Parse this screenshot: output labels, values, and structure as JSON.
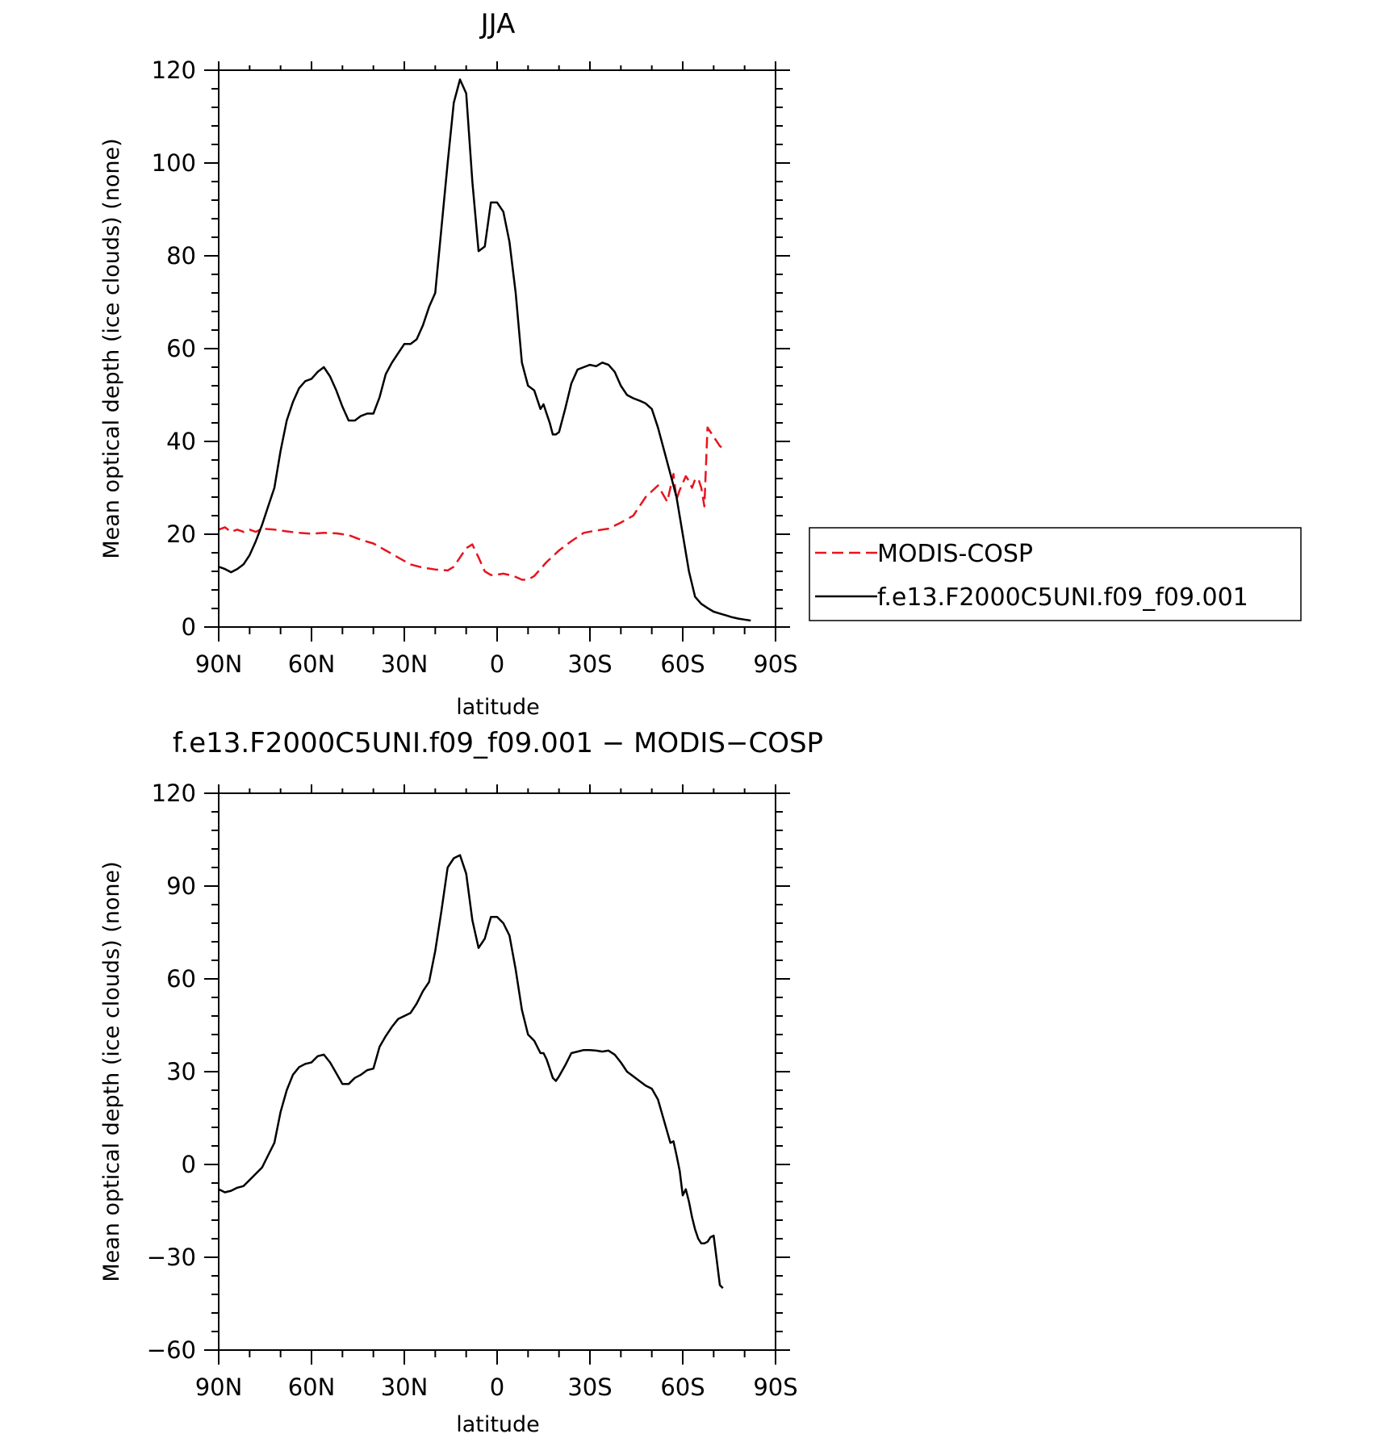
{
  "chart_data": [
    {
      "type": "line",
      "title": "JJA",
      "xlabel": "latitude",
      "ylabel": "Mean optical depth (ice clouds) (none)",
      "xlim": [
        90,
        -90
      ],
      "ylim": [
        0,
        120
      ],
      "x_ticks": [
        {
          "value": 90,
          "label": "90N"
        },
        {
          "value": 60,
          "label": "60N"
        },
        {
          "value": 30,
          "label": "30N"
        },
        {
          "value": 0,
          "label": "0"
        },
        {
          "value": -30,
          "label": "30S"
        },
        {
          "value": -60,
          "label": "60S"
        },
        {
          "value": -90,
          "label": "90S"
        }
      ],
      "y_ticks": [
        0,
        20,
        40,
        60,
        80,
        100,
        120
      ],
      "legend": "right",
      "series": [
        {
          "name": "MODIS-COSP",
          "color": "#e8141e",
          "dash": true,
          "x": [
            90,
            88,
            86,
            84,
            82,
            80,
            78,
            76,
            72,
            68,
            64,
            60,
            56,
            52,
            48,
            44,
            40,
            36,
            32,
            28,
            24,
            20,
            16,
            14,
            12,
            10,
            8,
            6,
            4,
            2,
            0,
            -2,
            -4,
            -6,
            -8,
            -10,
            -12,
            -14,
            -16,
            -20,
            -24,
            -28,
            -32,
            -36,
            -40,
            -44,
            -48,
            -52,
            -55,
            -56,
            -57,
            -58,
            -59,
            -60,
            -61,
            -62,
            -63,
            -64,
            -65,
            -66,
            -67,
            -68,
            -69,
            -70,
            -71,
            -72,
            -73
          ],
          "y": [
            21,
            21.5,
            20.5,
            21,
            20.5,
            21,
            20.5,
            21.2,
            21,
            20.6,
            20.3,
            20.1,
            20.3,
            20.2,
            19.8,
            18.8,
            18,
            16.5,
            15,
            13.5,
            12.8,
            12.4,
            12.2,
            13,
            15,
            17,
            17.8,
            15,
            12,
            11.2,
            11.3,
            11.5,
            11.2,
            10.8,
            10.2,
            10.2,
            11,
            12.5,
            14,
            16.5,
            18.5,
            20.3,
            20.8,
            21.2,
            22.5,
            24,
            28,
            30.5,
            27,
            30,
            33,
            27.5,
            29.5,
            31,
            32.5,
            31.5,
            30,
            31.8,
            32,
            30,
            26,
            43,
            42,
            41,
            40,
            39,
            38.5
          ]
        },
        {
          "name": "f.e13.F2000C5UNI.f09_f09.001",
          "color": "#000000",
          "dash": false,
          "x": [
            90,
            88,
            86,
            84,
            82,
            80,
            78,
            76,
            74,
            72,
            70,
            68,
            66,
            64,
            62,
            60,
            58,
            56,
            54,
            52,
            50,
            48,
            46,
            44,
            42,
            40,
            38,
            36,
            34,
            32,
            30,
            28,
            26,
            24,
            22,
            20,
            18,
            16,
            14,
            12,
            10,
            8,
            6,
            4,
            2,
            0,
            -2,
            -4,
            -6,
            -8,
            -10,
            -12,
            -14,
            -15,
            -16,
            -17,
            -18,
            -19,
            -20,
            -22,
            -24,
            -26,
            -28,
            -30,
            -32,
            -34,
            -36,
            -38,
            -40,
            -42,
            -44,
            -46,
            -48,
            -50,
            -52,
            -54,
            -56,
            -58,
            -60,
            -62,
            -64,
            -66,
            -68,
            -70,
            -72,
            -74,
            -76,
            -78,
            -80,
            -82
          ],
          "y": [
            13,
            12.5,
            11.8,
            12.5,
            13.5,
            15.5,
            18.5,
            22,
            26,
            30,
            38,
            44.5,
            48.5,
            51.5,
            53,
            53.5,
            55,
            56,
            54,
            51,
            47.5,
            44.5,
            44.5,
            45.5,
            46,
            46,
            49.5,
            54.5,
            57,
            59,
            61,
            61,
            62,
            65,
            69,
            72,
            86,
            100,
            113,
            118,
            115,
            96,
            81,
            82,
            91.5,
            91.5,
            89.5,
            83,
            72,
            57,
            52,
            51,
            47,
            48,
            46,
            44,
            41.5,
            41.5,
            42,
            47,
            52.5,
            55.5,
            56,
            56.5,
            56.2,
            57,
            56.5,
            55,
            52,
            50,
            49.3,
            48.8,
            48.2,
            47,
            43,
            38,
            33,
            28,
            20,
            12,
            6.5,
            5,
            4.1,
            3.3,
            2.9,
            2.5,
            2.1,
            1.8,
            1.6,
            1.4
          ]
        }
      ]
    },
    {
      "type": "line",
      "title": "f.e13.F2000C5UNI.f09_f09.001 − MODIS−COSP",
      "xlabel": "latitude",
      "ylabel": "Mean optical depth (ice clouds) (none)",
      "xlim": [
        90,
        -90
      ],
      "ylim": [
        -60,
        120
      ],
      "x_ticks": [
        {
          "value": 90,
          "label": "90N"
        },
        {
          "value": 60,
          "label": "60N"
        },
        {
          "value": 30,
          "label": "30N"
        },
        {
          "value": 0,
          "label": "0"
        },
        {
          "value": -30,
          "label": "30S"
        },
        {
          "value": -60,
          "label": "60S"
        },
        {
          "value": -90,
          "label": "90S"
        }
      ],
      "y_ticks": [
        -60,
        -30,
        0,
        30,
        60,
        90,
        120
      ],
      "series": [
        {
          "color": "#000000",
          "dash": false,
          "x": [
            90,
            88,
            86,
            84,
            82,
            80,
            78,
            76,
            74,
            72,
            70,
            68,
            66,
            64,
            62,
            60,
            58,
            56,
            54,
            52,
            50,
            48,
            46,
            44,
            42,
            40,
            38,
            36,
            34,
            32,
            30,
            28,
            26,
            24,
            22,
            20,
            18,
            16,
            14,
            12,
            10,
            8,
            6,
            4,
            2,
            0,
            -2,
            -4,
            -6,
            -8,
            -10,
            -12,
            -14,
            -15,
            -16,
            -17,
            -18,
            -19,
            -20,
            -22,
            -24,
            -26,
            -28,
            -30,
            -32,
            -34,
            -36,
            -38,
            -40,
            -42,
            -44,
            -46,
            -48,
            -50,
            -52,
            -54,
            -56,
            -57,
            -58,
            -59,
            -60,
            -61,
            -62,
            -63,
            -64,
            -65,
            -66,
            -67,
            -68,
            -69,
            -70,
            -71,
            -72,
            -73
          ],
          "y": [
            -8,
            -9,
            -8.5,
            -7.5,
            -7,
            -5,
            -3,
            -1,
            3,
            7,
            17,
            24,
            29,
            31.5,
            32.5,
            33,
            35,
            35.5,
            33,
            29.5,
            26,
            26,
            28,
            29,
            30.5,
            31,
            38,
            41.5,
            44.5,
            47,
            48,
            49,
            52,
            56,
            59,
            69,
            82,
            96,
            99,
            100,
            94,
            79,
            70,
            73,
            80,
            80,
            78,
            74,
            63,
            50,
            42,
            40,
            36,
            36,
            34,
            31,
            28,
            27,
            28.5,
            32,
            36,
            36.5,
            37,
            37,
            36.8,
            36.5,
            36.8,
            35.5,
            33,
            30,
            28.5,
            27,
            25.5,
            24.5,
            21,
            14,
            7,
            7.5,
            3,
            -2,
            -10,
            -8,
            -12,
            -17,
            -21,
            -24,
            -25.5,
            -25.5,
            -25,
            -23.5,
            -23,
            -31,
            -39,
            -40
          ]
        }
      ]
    }
  ]
}
